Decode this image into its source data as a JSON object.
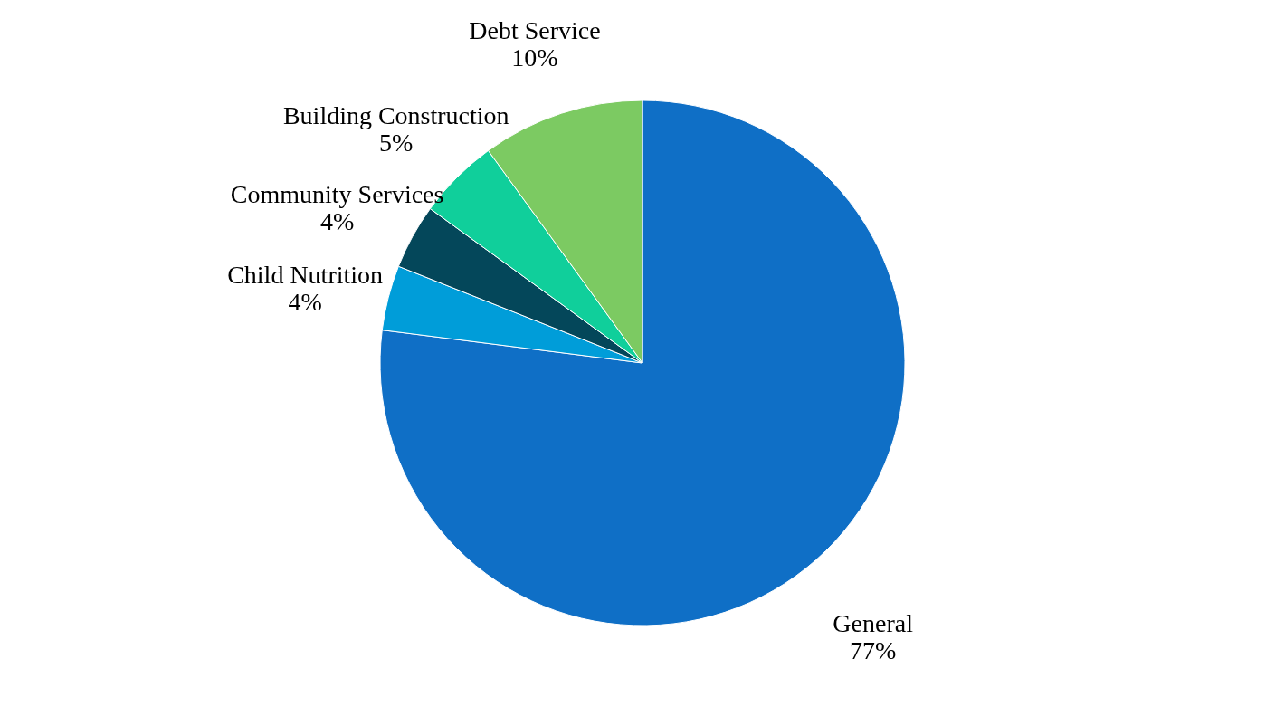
{
  "chart_data": {
    "type": "pie",
    "categories": [
      "General",
      "Child Nutrition",
      "Community Services",
      "Building Construction",
      "Debt Service"
    ],
    "values": [
      77,
      4,
      4,
      5,
      10
    ],
    "colors": [
      "#0f6fc6",
      "#009dd9",
      "#04475a",
      "#10cf9b",
      "#7cca62"
    ],
    "value_labels": [
      "77%",
      "4%",
      "4%",
      "5%",
      "10%"
    ]
  }
}
